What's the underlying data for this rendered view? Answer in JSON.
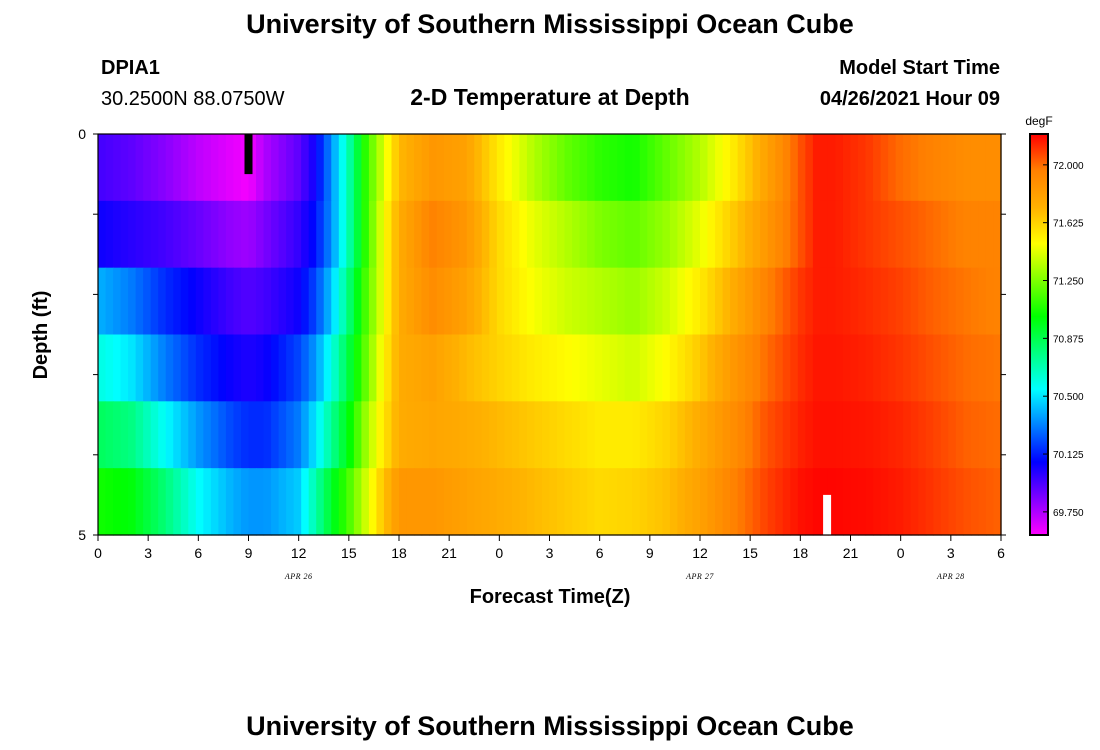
{
  "page": {
    "title": "University of Southern Mississippi Ocean Cube",
    "footer_title": "University of Southern Mississippi Ocean Cube",
    "station_id": "DPIA1",
    "coordinates": "30.2500N  88.0750W",
    "model_label": "Model Start Time",
    "model_start": "04/26/2021 Hour 09"
  },
  "chart_data": {
    "type": "heatmap",
    "title": "2-D Temperature at Depth",
    "xlabel": "Forecast Time(Z)",
    "ylabel": "Depth (ft)",
    "x_ticks": [
      "0",
      "3",
      "6",
      "9",
      "12",
      "15",
      "18",
      "21",
      "0",
      "3",
      "6",
      "9",
      "12",
      "15",
      "18",
      "21",
      "0",
      "3",
      "6"
    ],
    "x_range_hours": [
      0,
      54
    ],
    "date_labels": [
      {
        "label": "APR  26",
        "hour": 12
      },
      {
        "label": "APR  27",
        "hour": 36
      },
      {
        "label": "APR  28",
        "hour": 51
      }
    ],
    "y_ticks": [
      "0",
      "5"
    ],
    "y_range": [
      0,
      5
    ],
    "colorbar": {
      "unit": "degF",
      "ticks": [
        "72.000",
        "71.625",
        "71.250",
        "70.875",
        "70.500",
        "70.125",
        "69.750"
      ],
      "min": 69.6,
      "max": 72.2,
      "colors": [
        "#ff00ff",
        "#8000ff",
        "#0000ff",
        "#0080ff",
        "#00ffff",
        "#00ff80",
        "#00ff00",
        "#80ff00",
        "#ffff00",
        "#ffb000",
        "#ff8000",
        "#ff0000"
      ]
    },
    "depth_layers": [
      0.25,
      1.0,
      2.0,
      3.0,
      4.0,
      4.75
    ],
    "profile_hours": [
      0,
      2,
      4,
      6,
      8,
      9,
      10,
      12,
      13,
      14,
      15,
      16,
      17,
      18,
      20,
      22,
      24,
      26,
      28,
      30,
      32,
      34,
      36,
      38,
      40,
      42,
      43,
      44,
      46,
      48,
      50,
      52,
      54
    ],
    "temperatures": [
      [
        69.95,
        69.9,
        69.82,
        69.72,
        69.65,
        69.62,
        69.75,
        69.9,
        70.05,
        70.35,
        70.7,
        71.1,
        71.4,
        71.7,
        71.85,
        71.8,
        71.55,
        71.35,
        71.2,
        71.1,
        71.05,
        71.2,
        71.35,
        71.55,
        71.8,
        72.05,
        72.15,
        72.15,
        72.1,
        72.0,
        71.95,
        71.9,
        71.9
      ],
      [
        70.05,
        70.0,
        69.95,
        69.88,
        69.8,
        69.78,
        69.85,
        69.98,
        70.1,
        70.35,
        70.7,
        71.1,
        71.45,
        71.75,
        71.95,
        71.85,
        71.6,
        71.45,
        71.35,
        71.25,
        71.2,
        71.3,
        71.45,
        71.65,
        71.85,
        72.05,
        72.15,
        72.15,
        72.1,
        72.05,
        72.0,
        71.95,
        71.95
      ],
      [
        70.4,
        70.3,
        70.15,
        70.05,
        69.95,
        69.92,
        69.95,
        70.05,
        70.2,
        70.45,
        70.8,
        71.15,
        71.45,
        71.75,
        71.9,
        71.8,
        71.6,
        71.48,
        71.4,
        71.35,
        71.3,
        71.4,
        71.55,
        71.75,
        71.95,
        72.1,
        72.15,
        72.15,
        72.12,
        72.08,
        72.02,
        71.98,
        71.95
      ],
      [
        70.6,
        70.5,
        70.3,
        70.15,
        70.05,
        70.02,
        70.05,
        70.2,
        70.35,
        70.6,
        70.9,
        71.2,
        71.5,
        71.75,
        71.8,
        71.7,
        71.62,
        71.55,
        71.5,
        71.45,
        71.4,
        71.5,
        71.65,
        71.85,
        72.0,
        72.12,
        72.16,
        72.16,
        72.14,
        72.1,
        72.05,
        72.0,
        71.98
      ],
      [
        70.85,
        70.78,
        70.55,
        70.35,
        70.2,
        70.15,
        70.15,
        70.3,
        70.5,
        70.75,
        71.0,
        71.3,
        71.55,
        71.75,
        71.78,
        71.75,
        71.7,
        71.65,
        71.6,
        71.55,
        71.55,
        71.62,
        71.75,
        71.9,
        72.05,
        72.14,
        72.17,
        72.17,
        72.16,
        72.13,
        72.08,
        72.02,
        72.0
      ],
      [
        71.05,
        71.0,
        70.8,
        70.55,
        70.4,
        70.35,
        70.35,
        70.45,
        70.7,
        70.95,
        71.15,
        71.4,
        71.65,
        71.85,
        71.85,
        71.8,
        71.75,
        71.7,
        71.65,
        71.6,
        71.62,
        71.68,
        71.8,
        71.95,
        72.08,
        72.17,
        72.19,
        72.19,
        72.18,
        72.15,
        72.1,
        72.05,
        72.02
      ]
    ],
    "markers": [
      {
        "hour": 9,
        "depth_from": 0,
        "depth_to": 0.5,
        "color": "#000000"
      },
      {
        "hour": 43.6,
        "depth_from": 4.5,
        "depth_to": 5,
        "color": "#ffffff"
      }
    ]
  }
}
